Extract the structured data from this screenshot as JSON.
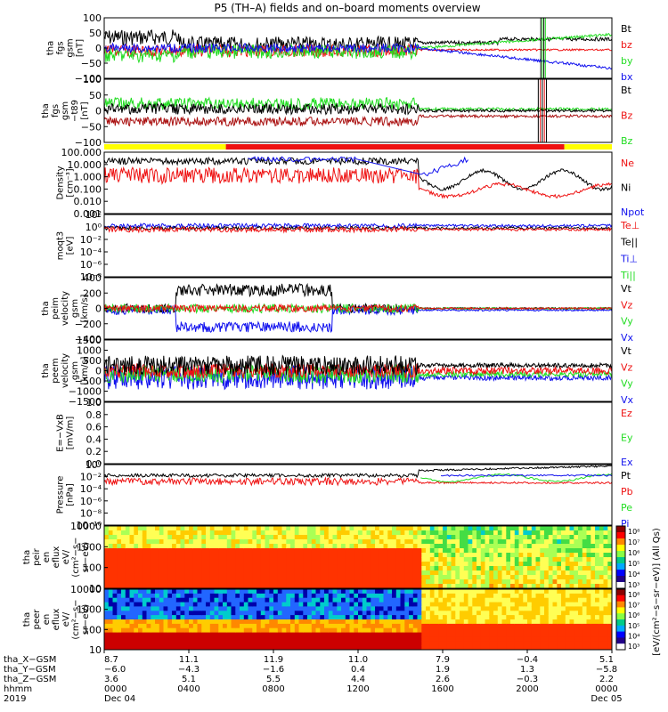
{
  "title": "P5 (TH–A) fields and on–board moments overview",
  "colors": {
    "black": "#000000",
    "red": "#ee1111",
    "green": "#22dd22",
    "blue": "#1111ee",
    "yellow": "#ffff00",
    "darkred": "#aa1111"
  },
  "panels": [
    {
      "id": "fgs",
      "ylabel": [
        "tha",
        "fgs",
        "gsm",
        "[nT]"
      ],
      "ticks": [
        "100",
        "50",
        "0",
        "−50",
        "−100"
      ],
      "legend": [
        {
          "t": "Bt",
          "c": "black"
        },
        {
          "t": "bz",
          "c": "red"
        },
        {
          "t": "by",
          "c": "green"
        },
        {
          "t": "bx",
          "c": "blue"
        }
      ]
    },
    {
      "id": "fgs_dsl",
      "ylabel": [
        "tha",
        "fgs",
        "gsm",
        "−t89",
        "[nT]"
      ],
      "ticks": [
        "100",
        "50",
        "0",
        "−50",
        "−100"
      ],
      "legend": [
        {
          "t": "Bt",
          "c": "black"
        },
        {
          "t": "Bz",
          "c": "red"
        },
        {
          "t": "Bz",
          "c": "green"
        }
      ]
    },
    {
      "id": "density",
      "ylabel": [
        "Density",
        "[cm⁻³]"
      ],
      "ticks": [
        "100.000",
        "10.000",
        "1.000",
        "0.100",
        "0.010",
        "0.001"
      ],
      "legend": [
        {
          "t": "Ne",
          "c": "red"
        },
        {
          "t": "Ni",
          "c": "black"
        },
        {
          "t": "Npot",
          "c": "blue"
        }
      ]
    },
    {
      "id": "temp",
      "ylabel": [
        "moqt3",
        "[eV]"
      ],
      "ticks": [
        "10²",
        "10⁰",
        "10⁻²",
        "10⁻⁴",
        "10⁻⁶",
        "10⁻⁸"
      ],
      "legend": [
        {
          "t": "Te⊥",
          "c": "red"
        },
        {
          "t": "Te||",
          "c": "black"
        },
        {
          "t": "Ti⊥",
          "c": "blue"
        },
        {
          "t": "Ti||",
          "c": "green"
        }
      ]
    },
    {
      "id": "peim",
      "ylabel": [
        "tha",
        "peim",
        "velocity",
        "gsm",
        "[km/s]"
      ],
      "ticks": [
        "400",
        "200",
        "0",
        "−200",
        "−400"
      ],
      "legend": [
        {
          "t": "Vt",
          "c": "black"
        },
        {
          "t": "Vz",
          "c": "red"
        },
        {
          "t": "Vy",
          "c": "green"
        },
        {
          "t": "Vx",
          "c": "blue"
        }
      ]
    },
    {
      "id": "peem",
      "ylabel": [
        "tha",
        "peem",
        "velocity",
        "gsm",
        "[km/s]"
      ],
      "ticks": [
        "1500",
        "1000",
        "500",
        "0",
        "−500",
        "−1000",
        "−1500"
      ],
      "legend": [
        {
          "t": "Vt",
          "c": "black"
        },
        {
          "t": "Vz",
          "c": "red"
        },
        {
          "t": "Vy",
          "c": "green"
        },
        {
          "t": "Vx",
          "c": "blue"
        }
      ]
    },
    {
      "id": "efield",
      "ylabel": [
        "E=−VxB",
        "[mV/m]"
      ],
      "ticks": [
        "1.0",
        "0.8",
        "0.6",
        "0.4",
        "0.2",
        "0.0"
      ],
      "legend": [
        {
          "t": "Ez",
          "c": "red"
        },
        {
          "t": "Ey",
          "c": "green"
        },
        {
          "t": "Ex",
          "c": "blue"
        }
      ]
    },
    {
      "id": "pressure",
      "ylabel": [
        "Pressure",
        "[nPa]"
      ],
      "ticks": [
        "10⁰",
        "10⁻²",
        "10⁻⁴",
        "10⁻⁶",
        "10⁻⁸",
        "10⁻¹⁰"
      ],
      "legend": [
        {
          "t": "Pt",
          "c": "black"
        },
        {
          "t": "Pb",
          "c": "red"
        },
        {
          "t": "Pe",
          "c": "green"
        },
        {
          "t": "Pi",
          "c": "blue"
        }
      ]
    },
    {
      "id": "peir",
      "ylabel": [
        "tha",
        "peir",
        "en",
        "eflux",
        "eV/",
        "(cm²−s−",
        "sr−eV)"
      ],
      "ticks": [
        "10000",
        "1000",
        "100",
        "10"
      ]
    },
    {
      "id": "peer",
      "ylabel": [
        "tha",
        "peer",
        "en",
        "eflux",
        "eV/",
        "(cm²−s−",
        "sr−eV)"
      ],
      "ticks": [
        "10000",
        "1000",
        "100",
        "10"
      ]
    }
  ],
  "colorbar": {
    "label": "[eV/(cm²−s−sr−eV)] (All Qs)",
    "ticks": [
      "10⁸",
      "10⁷",
      "10⁶",
      "10⁵",
      "10⁴",
      "10³"
    ]
  },
  "xaxis": {
    "rowlabels": [
      "tha_X−GSM",
      "tha_Y−GSM",
      "tha_Z−GSM",
      "hhmm",
      "2019"
    ],
    "columns": [
      {
        "x": "8.7",
        "y": "−6.0",
        "z": "3.6",
        "hhmm": "0000",
        "date": "Dec 04"
      },
      {
        "x": "11.1",
        "y": "−4.3",
        "z": "5.1",
        "hhmm": "0400",
        "date": ""
      },
      {
        "x": "11.9",
        "y": "−1.6",
        "z": "5.5",
        "hhmm": "0800",
        "date": ""
      },
      {
        "x": "11.0",
        "y": "0.4",
        "z": "4.4",
        "hhmm": "1200",
        "date": ""
      },
      {
        "x": "7.9",
        "y": "1.9",
        "z": "2.6",
        "hhmm": "1600",
        "date": ""
      },
      {
        "x": "−0.4",
        "y": "1.3",
        "z": "−0.3",
        "hhmm": "2000",
        "date": ""
      },
      {
        "x": "5.1",
        "y": "−5.8",
        "z": "2.2",
        "hhmm": "0000",
        "date": "Dec 05"
      }
    ]
  },
  "chart_data": {
    "type": "line",
    "title": "P5 (TH–A) fields and on–board moments overview",
    "x_range": [
      "2019-12-04 00:00",
      "2019-12-05 00:00"
    ],
    "x_ticks": [
      "0000",
      "0400",
      "0800",
      "1200",
      "1600",
      "2000",
      "0000"
    ],
    "panels_ylim": {
      "fgs": [
        -100,
        100
      ],
      "fgs_dsl": [
        -120,
        120
      ],
      "density": [
        0.001,
        100
      ],
      "temp": [
        1e-08,
        100
      ],
      "peim": [
        -400,
        400
      ],
      "peem": [
        -1500,
        1500
      ],
      "efield": [
        0,
        1
      ],
      "pressure": [
        1e-10,
        1
      ],
      "peir": [
        10,
        10000
      ],
      "peer": [
        10,
        10000
      ]
    },
    "mode_bar": [
      {
        "from": "0000",
        "to": "0545",
        "color": "#ffff00"
      },
      {
        "from": "0545",
        "to": "2145",
        "color": "#ee1111"
      },
      {
        "from": "2145",
        "to": "0000",
        "color": "#ffff00"
      }
    ]
  }
}
